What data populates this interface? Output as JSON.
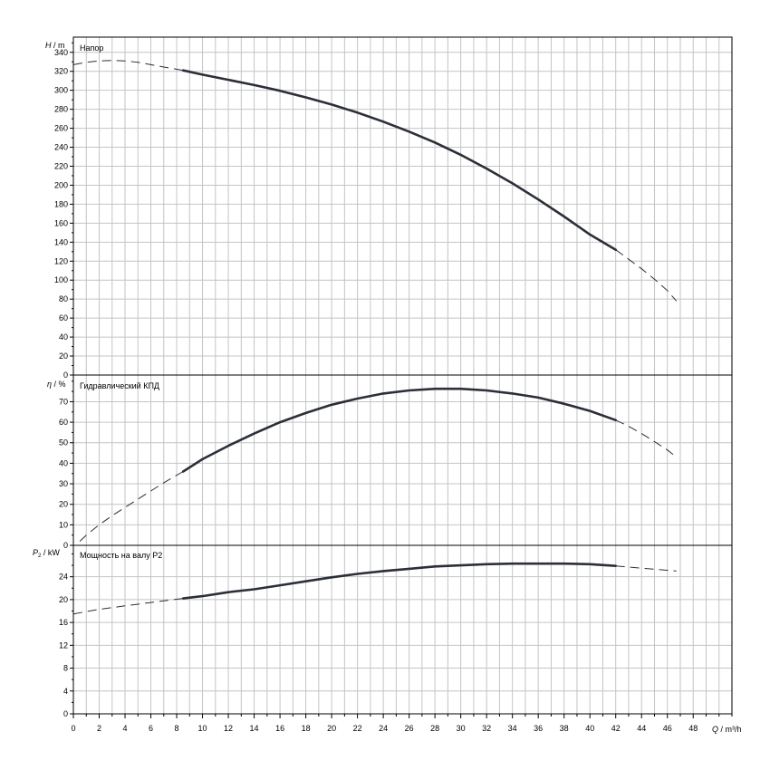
{
  "chart_data": {
    "type": "line",
    "x": {
      "label_var": "Q",
      "label_unit": "m³/h",
      "range": [
        0,
        51
      ],
      "ticks": [
        0,
        2,
        4,
        6,
        8,
        10,
        12,
        14,
        16,
        18,
        20,
        22,
        24,
        26,
        28,
        30,
        32,
        34,
        36,
        38,
        40,
        42,
        44,
        46,
        48
      ]
    },
    "panels": [
      {
        "id": "head",
        "title": "Напор",
        "ylabel_var": "H",
        "ylabel_unit": "m",
        "ylim": [
          0,
          356
        ],
        "yticks": [
          0,
          20,
          40,
          60,
          80,
          100,
          120,
          140,
          160,
          180,
          200,
          220,
          240,
          260,
          280,
          300,
          320,
          340
        ],
        "series": [
          {
            "style": "dashed",
            "points": [
              [
                0,
                327
              ],
              [
                1,
                329.5
              ],
              [
                2,
                331
              ],
              [
                3,
                331.5
              ],
              [
                4,
                331
              ],
              [
                5,
                329.5
              ],
              [
                6,
                327
              ],
              [
                7,
                324.5
              ],
              [
                8.5,
                321
              ]
            ]
          },
          {
            "style": "solid",
            "points": [
              [
                8.5,
                321
              ],
              [
                10,
                316.5
              ],
              [
                12,
                311
              ],
              [
                14,
                305.5
              ],
              [
                16,
                299.5
              ],
              [
                18,
                292.5
              ],
              [
                20,
                285
              ],
              [
                22,
                276.5
              ],
              [
                24,
                267
              ],
              [
                26,
                256.5
              ],
              [
                28,
                245
              ],
              [
                30,
                232
              ],
              [
                32,
                217.5
              ],
              [
                34,
                202
              ],
              [
                36,
                185
              ],
              [
                38,
                167
              ],
              [
                40,
                148
              ],
              [
                42,
                132
              ]
            ]
          },
          {
            "style": "dashed",
            "points": [
              [
                42,
                132
              ],
              [
                43,
                122
              ],
              [
                44,
                112
              ],
              [
                45,
                101
              ],
              [
                46,
                89
              ],
              [
                46.7,
                78
              ]
            ]
          }
        ]
      },
      {
        "id": "efficiency",
        "title": "Гидравлический КПД",
        "ylabel_var": "η",
        "ylabel_unit": "%",
        "ylim": [
          0,
          83
        ],
        "yticks": [
          0,
          10,
          20,
          30,
          40,
          50,
          60,
          70
        ],
        "series": [
          {
            "style": "dashed",
            "points": [
              [
                0.5,
                2
              ],
              [
                1,
                5
              ],
              [
                2,
                10
              ],
              [
                3,
                14.5
              ],
              [
                4,
                18.5
              ],
              [
                5,
                22.5
              ],
              [
                6,
                26.5
              ],
              [
                7,
                30.5
              ],
              [
                8.5,
                36
              ]
            ]
          },
          {
            "style": "solid",
            "points": [
              [
                8.5,
                36
              ],
              [
                10,
                42
              ],
              [
                12,
                48.5
              ],
              [
                14,
                54.5
              ],
              [
                16,
                60
              ],
              [
                18,
                64.5
              ],
              [
                20,
                68.5
              ],
              [
                22,
                71.5
              ],
              [
                24,
                74
              ],
              [
                26,
                75.5
              ],
              [
                28,
                76.3
              ],
              [
                30,
                76.3
              ],
              [
                32,
                75.5
              ],
              [
                34,
                74
              ],
              [
                36,
                72
              ],
              [
                38,
                69
              ],
              [
                40,
                65.5
              ],
              [
                42,
                61
              ]
            ]
          },
          {
            "style": "dashed",
            "points": [
              [
                42,
                61
              ],
              [
                43,
                58
              ],
              [
                44,
                54.5
              ],
              [
                45,
                50.5
              ],
              [
                46,
                46.5
              ],
              [
                46.7,
                43
              ]
            ]
          }
        ]
      },
      {
        "id": "power",
        "title": "Мощность на валу P2",
        "ylabel_var": "P",
        "ylabel_sub": "2",
        "ylabel_unit": "kW",
        "ylim": [
          0,
          29.5
        ],
        "yticks": [
          0,
          4,
          8,
          12,
          16,
          20,
          24
        ],
        "series": [
          {
            "style": "dashed",
            "points": [
              [
                0,
                17.5
              ],
              [
                2,
                18.3
              ],
              [
                4,
                18.9
              ],
              [
                6,
                19.5
              ],
              [
                8.5,
                20.2
              ]
            ]
          },
          {
            "style": "solid",
            "points": [
              [
                8.5,
                20.2
              ],
              [
                10,
                20.6
              ],
              [
                12,
                21.3
              ],
              [
                14,
                21.8
              ],
              [
                16,
                22.5
              ],
              [
                18,
                23.2
              ],
              [
                20,
                23.9
              ],
              [
                22,
                24.5
              ],
              [
                24,
                25
              ],
              [
                26,
                25.4
              ],
              [
                28,
                25.8
              ],
              [
                30,
                26
              ],
              [
                32,
                26.2
              ],
              [
                34,
                26.3
              ],
              [
                36,
                26.3
              ],
              [
                38,
                26.3
              ],
              [
                40,
                26.2
              ],
              [
                42,
                25.9
              ]
            ]
          },
          {
            "style": "dashed",
            "points": [
              [
                42,
                25.9
              ],
              [
                44,
                25.5
              ],
              [
                46.7,
                25
              ]
            ]
          }
        ]
      }
    ]
  }
}
